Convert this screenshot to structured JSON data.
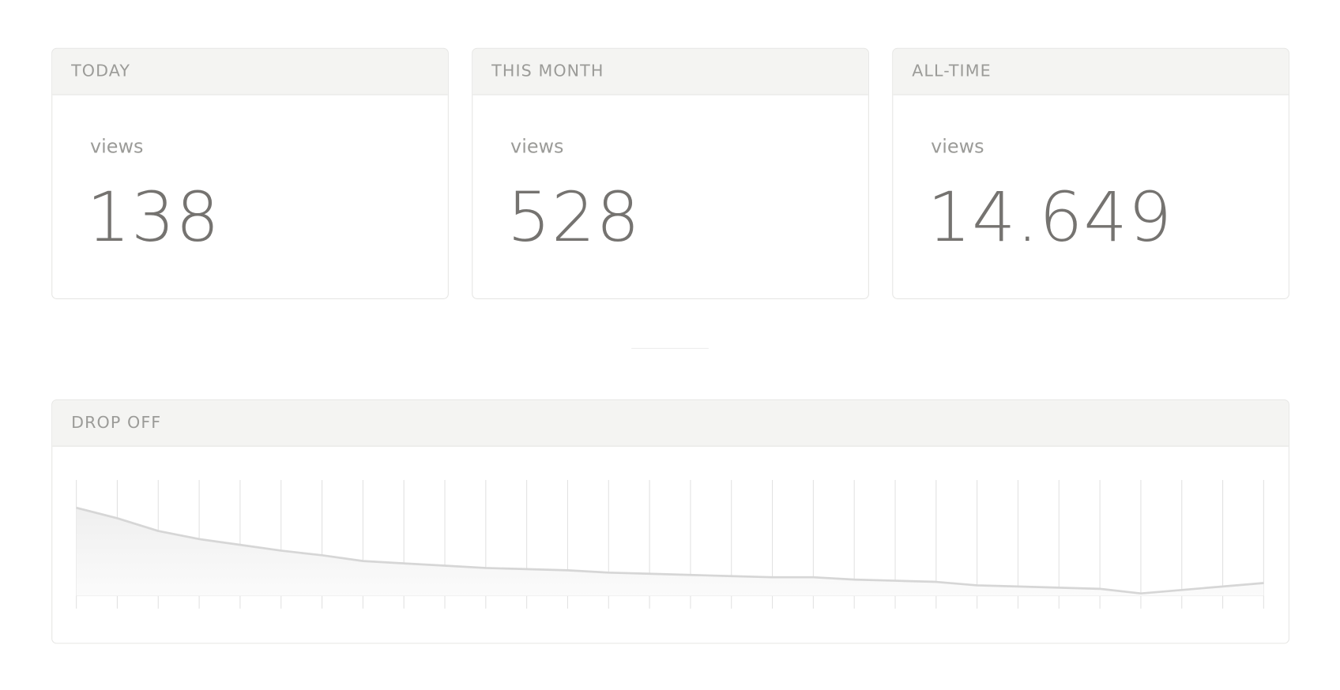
{
  "cards": [
    {
      "title": "TODAY",
      "label": "views",
      "value": "138"
    },
    {
      "title": "THIS MONTH",
      "label": "views",
      "value": "528"
    },
    {
      "title": "ALL-TIME",
      "label": "views",
      "value": "14.649"
    }
  ],
  "chart_data": {
    "type": "area",
    "title": "DROP OFF",
    "categories": [
      null,
      null,
      null,
      null,
      null,
      null,
      null,
      null,
      null,
      null,
      null,
      null,
      null,
      null,
      null,
      null,
      null,
      null,
      null,
      null,
      null,
      null,
      null,
      null,
      null,
      null,
      null,
      null,
      null,
      null
    ],
    "values": [
      76,
      67,
      56,
      49,
      44,
      39,
      35,
      30,
      28,
      26,
      24,
      23,
      22,
      20,
      19,
      18,
      17,
      16,
      16,
      14,
      13,
      12,
      9,
      8,
      7,
      6,
      2,
      5,
      8,
      11
    ],
    "ylim": [
      0,
      100
    ],
    "color": "#d6d6d6",
    "grid": true
  }
}
